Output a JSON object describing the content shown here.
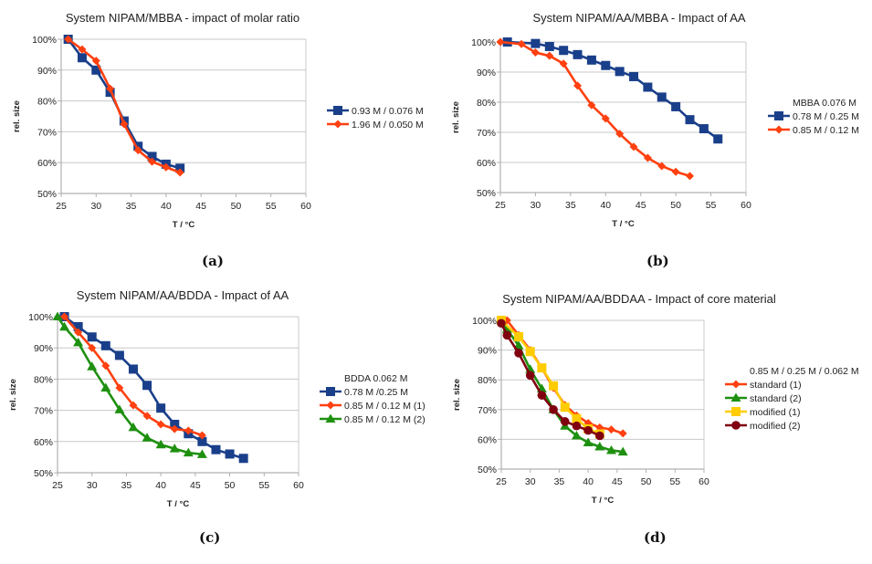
{
  "chart_data": [
    {
      "type": "line",
      "caption": "(a)",
      "title": "System NIPAM/MBBA - impact of molar ratio",
      "xlabel": "T / °C",
      "ylabel": "rel. size",
      "xlim": [
        25,
        60
      ],
      "ylim": [
        50,
        100
      ],
      "xticks": [
        "25",
        "30",
        "35",
        "40",
        "45",
        "50",
        "55",
        "60"
      ],
      "yticks": [
        "50%",
        "60%",
        "70%",
        "80%",
        "90%",
        "100%"
      ],
      "grid": true,
      "legend_title": "",
      "legend_position": "right",
      "series": [
        {
          "name": "0.93 M / 0.076 M",
          "color": "#1a3f8a",
          "marker": "square",
          "x": [
            26,
            28,
            30,
            32,
            34,
            36,
            38,
            40,
            42
          ],
          "y": [
            100,
            94,
            90,
            82.8,
            73.5,
            65.3,
            62,
            59.5,
            58.2
          ]
        },
        {
          "name": "1.96 M / 0.050 M",
          "color": "#ff4010",
          "marker": "diamond",
          "x": [
            26,
            28,
            30,
            32,
            34,
            36,
            38,
            40,
            42
          ],
          "y": [
            100,
            96.7,
            93,
            84,
            72.5,
            64,
            60.3,
            58.5,
            56.8
          ]
        }
      ]
    },
    {
      "type": "line",
      "caption": "(b)",
      "title": "System NIPAM/AA/MBBA - Impact of AA",
      "xlabel": "T / °C",
      "ylabel": "rel. size",
      "xlim": [
        25,
        60
      ],
      "ylim": [
        50,
        100
      ],
      "xticks": [
        "25",
        "30",
        "35",
        "40",
        "45",
        "50",
        "55",
        "60"
      ],
      "yticks": [
        "50%",
        "60%",
        "70%",
        "80%",
        "90%",
        "100%"
      ],
      "grid": true,
      "legend_title": "MBBA 0.076 M",
      "legend_position": "right",
      "series": [
        {
          "name": "0.78 M / 0.25 M",
          "color": "#1a3f8a",
          "marker": "square",
          "x": [
            26,
            30,
            32,
            34,
            36,
            38,
            40,
            42,
            44,
            46,
            48,
            50,
            52,
            54,
            56
          ],
          "y": [
            100,
            99.5,
            98.5,
            97.2,
            95.8,
            94,
            92.2,
            90.2,
            88.5,
            85,
            81.7,
            78.5,
            74.2,
            71.2,
            67.8
          ]
        },
        {
          "name": "0.85 M / 0.12 M",
          "color": "#ff4010",
          "marker": "diamond",
          "x": [
            25,
            28,
            30,
            32,
            34,
            36,
            38,
            40,
            42,
            44,
            46,
            48,
            50,
            52
          ],
          "y": [
            100,
            99.3,
            96.5,
            95.4,
            92.8,
            85.5,
            79,
            74.6,
            69.5,
            65.2,
            61.5,
            58.8,
            56.9,
            55.5
          ]
        }
      ]
    },
    {
      "type": "line",
      "caption": "(c)",
      "title": "System NIPAM/AA/BDDA - Impact of AA",
      "xlabel": "T / °C",
      "ylabel": "rel. size",
      "xlim": [
        25,
        60
      ],
      "ylim": [
        50,
        100
      ],
      "xticks": [
        "25",
        "30",
        "35",
        "40",
        "45",
        "50",
        "55",
        "60"
      ],
      "yticks": [
        "50%",
        "60%",
        "70%",
        "80%",
        "90%",
        "100%"
      ],
      "grid": true,
      "legend_title": "BDDA 0.062 M",
      "legend_position": "right",
      "series": [
        {
          "name": "0.78 M /0.25 M",
          "color": "#1a3f8a",
          "marker": "square",
          "x": [
            26,
            28,
            30,
            32,
            34,
            36,
            38,
            40,
            42,
            44,
            46,
            48,
            50,
            52
          ],
          "y": [
            100,
            96.8,
            93.5,
            90.7,
            87.6,
            83.2,
            78,
            70.7,
            65.5,
            62.5,
            60,
            57.4,
            56,
            54.6
          ]
        },
        {
          "name": "0.85 M / 0.12 M (1)",
          "color": "#ff4010",
          "marker": "diamond",
          "x": [
            26,
            28,
            30,
            32,
            34,
            36,
            38,
            40,
            42,
            44,
            46
          ],
          "y": [
            100,
            95,
            90,
            84.3,
            77.2,
            71.6,
            68.2,
            65.5,
            64,
            63.5,
            62
          ]
        },
        {
          "name": "0.85 M / 0.12 M (2)",
          "color": "#1e9010",
          "marker": "triangle",
          "x": [
            25,
            26,
            28,
            30,
            32,
            34,
            36,
            38,
            40,
            42,
            44,
            46
          ],
          "y": [
            100,
            96.7,
            91.7,
            84,
            77.2,
            70.2,
            64.5,
            61.2,
            59,
            57.7,
            56.4,
            55.9
          ]
        }
      ]
    },
    {
      "type": "line",
      "caption": "(d)",
      "title": "System NIPAM/AA/BDDAA - Impact of core material",
      "xlabel": "T / °C",
      "ylabel": "rel. size",
      "xlim": [
        25,
        60
      ],
      "ylim": [
        50,
        100
      ],
      "xticks": [
        "25",
        "30",
        "35",
        "40",
        "45",
        "50",
        "55",
        "60"
      ],
      "yticks": [
        "50%",
        "60%",
        "70%",
        "80%",
        "90%",
        "100%"
      ],
      "grid": true,
      "legend_title": "0.85 M / 0.25 M / 0.062 M",
      "legend_position": "right",
      "series": [
        {
          "name": "standard (1)",
          "color": "#ff4010",
          "marker": "diamond",
          "x": [
            26,
            28,
            30,
            32,
            34,
            36,
            38,
            40,
            42,
            44,
            46
          ],
          "y": [
            100,
            95,
            90,
            84,
            77.3,
            71.5,
            68,
            65.5,
            64,
            63.3,
            62
          ]
        },
        {
          "name": "standard (2)",
          "color": "#1e9010",
          "marker": "triangle",
          "x": [
            25,
            26,
            28,
            30,
            32,
            34,
            36,
            38,
            40,
            42,
            44,
            46
          ],
          "y": [
            100,
            97,
            91.5,
            83.5,
            77,
            70,
            64.5,
            61.2,
            58.9,
            57.5,
            56.3,
            55.8
          ]
        },
        {
          "name": "modified (1)",
          "color": "#ffcc00",
          "marker": "square",
          "x": [
            25,
            28,
            30,
            32,
            34,
            36,
            38,
            40,
            42
          ],
          "y": [
            100,
            94.5,
            89.5,
            84,
            78,
            70.8,
            67,
            63.5,
            61.8
          ]
        },
        {
          "name": "modified (2)",
          "color": "#800010",
          "marker": "circle",
          "x": [
            25,
            26,
            28,
            30,
            32,
            34,
            36,
            38,
            40,
            42
          ],
          "y": [
            99,
            95,
            89,
            81.5,
            74.8,
            70,
            66,
            64.5,
            63,
            61.2
          ]
        }
      ]
    }
  ]
}
